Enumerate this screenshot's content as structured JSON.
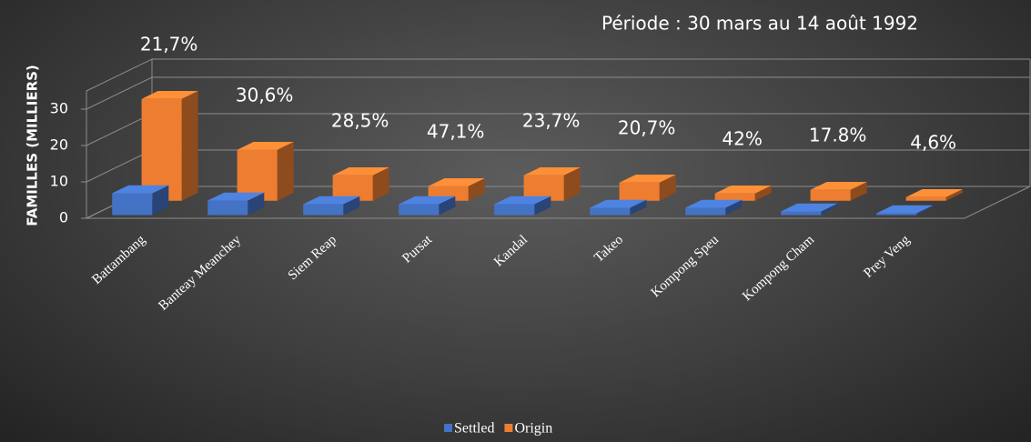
{
  "chart_data": {
    "type": "bar3d",
    "title": "Période : 30 mars au 14 août 1992",
    "y_label": "FAMILLES (MILLIERS)",
    "categories": [
      "Battambang",
      "Banteay Meanchey",
      "Siem Reap",
      "Pursat",
      "Kandal",
      "Takeo",
      "Kompong Speu",
      "Kompong Cham",
      "Prey Veng"
    ],
    "series": [
      {
        "name": "Settled",
        "color": "#4472c4",
        "values": [
          6,
          4,
          3,
          3,
          3,
          2,
          2,
          1,
          0.5
        ]
      },
      {
        "name": "Origin",
        "color": "#ed7d31",
        "values": [
          28,
          14,
          7,
          4,
          7,
          5,
          2,
          3,
          1
        ]
      }
    ],
    "annotations": [
      "21,7%",
      "30,6%",
      "28,5%",
      "47,1%",
      "23,7%",
      "20,7%",
      "42%",
      "17.8%",
      "4,6%"
    ],
    "ylim": [
      0,
      35
    ],
    "yticks": [
      0,
      10,
      20,
      30
    ],
    "grid": true,
    "legend": "bottom"
  }
}
